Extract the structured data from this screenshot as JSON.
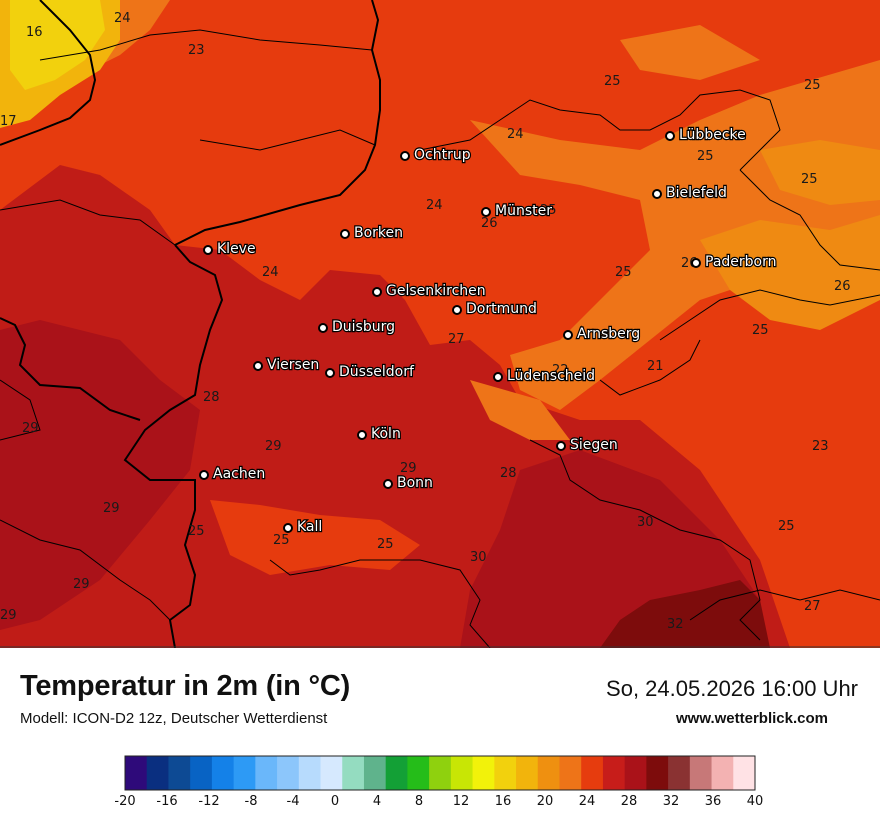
{
  "header": {
    "title": "Temperatur in 2m (in °C)",
    "model": "Modell: ICON-D2 12z, Deutscher Wetterdienst",
    "datetime": "So, 24.05.2026 16:00 Uhr",
    "website": "www.wetterblick.com"
  },
  "cities": [
    {
      "name": "Lübbecke"
    },
    {
      "name": "Ochtrup"
    },
    {
      "name": "Bielefeld"
    },
    {
      "name": "Münster"
    },
    {
      "name": "Borken"
    },
    {
      "name": "Kleve"
    },
    {
      "name": "Paderborn"
    },
    {
      "name": "Gelsenkirchen"
    },
    {
      "name": "Dortmund"
    },
    {
      "name": "Duisburg"
    },
    {
      "name": "Arnsberg"
    },
    {
      "name": "Viersen"
    },
    {
      "name": "Düsseldorf"
    },
    {
      "name": "Lüdenscheid"
    },
    {
      "name": "Köln"
    },
    {
      "name": "Siegen"
    },
    {
      "name": "Aachen"
    },
    {
      "name": "Bonn"
    },
    {
      "name": "Kall"
    }
  ],
  "temperature_values": [
    "16",
    "24",
    "23",
    "17",
    "25",
    "25",
    "24",
    "25",
    "25",
    "24",
    "26",
    "25",
    "24",
    "25",
    "26",
    "26",
    "25",
    "27",
    "22",
    "21",
    "28",
    "29",
    "29",
    "23",
    "29",
    "28",
    "29",
    "30",
    "25",
    "25",
    "25",
    "25",
    "30",
    "29",
    "27",
    "29",
    "32"
  ],
  "legend": {
    "ticks": [
      "-20",
      "-16",
      "-12",
      "-8",
      "-4",
      "0",
      "4",
      "8",
      "12",
      "16",
      "20",
      "24",
      "28",
      "32",
      "36",
      "40"
    ],
    "colors": [
      "#2e0a7a",
      "#0a2f80",
      "#0d4a94",
      "#0863c4",
      "#1481e8",
      "#2d9af5",
      "#6ab7fa",
      "#8cc6fb",
      "#b7dbfd",
      "#d6e9fe",
      "#94dcc0",
      "#5fb38c",
      "#13a036",
      "#25bd19",
      "#8fd10e",
      "#c8e605",
      "#f2f20a",
      "#f2d10d",
      "#f2b40c",
      "#ef9010",
      "#ee7418",
      "#e63c0e",
      "#c71d1a",
      "#aa1219",
      "#7d0c0c",
      "#8a3232",
      "#c77878",
      "#f3b2b2",
      "#ffe2e5"
    ]
  }
}
